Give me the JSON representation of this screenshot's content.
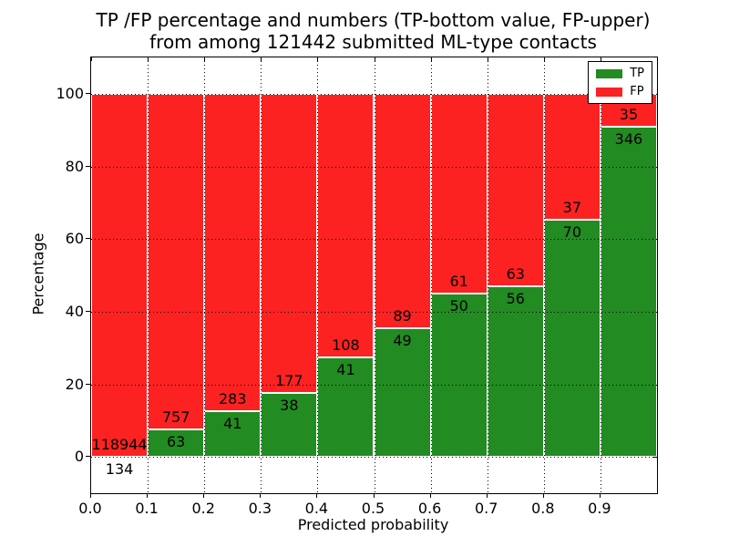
{
  "header": {
    "title_line1": "TP /FP percentage and numbers (TP-bottom value, FP-upper)",
    "title_line2": "from among 121442 submitted ML-type contacts"
  },
  "chart_data": {
    "type": "bar",
    "stacked": true,
    "title": "TP /FP percentage and numbers (TP-bottom value, FP-upper)\nfrom among 121442 submitted ML-type contacts",
    "xlabel": "Predicted probability",
    "ylabel": "Percentage",
    "total_submitted": 121442,
    "xlim": [
      0.0,
      1.0
    ],
    "ylim": [
      -10,
      110
    ],
    "xticks": [
      0.0,
      0.1,
      0.2,
      0.3,
      0.4,
      0.5,
      0.6,
      0.7,
      0.8,
      0.9
    ],
    "xtick_labels": [
      "0.0",
      "0.1",
      "0.2",
      "0.3",
      "0.4",
      "0.5",
      "0.6",
      "0.7",
      "0.8",
      "0.9"
    ],
    "yticks": [
      0,
      20,
      40,
      60,
      80,
      100
    ],
    "ytick_labels": [
      "0",
      "20",
      "40",
      "60",
      "80",
      "100"
    ],
    "bin_edges": [
      0.0,
      0.1,
      0.2,
      0.3,
      0.4,
      0.5,
      0.6,
      0.7,
      0.8,
      0.9,
      1.0
    ],
    "grid": true,
    "bar_edge_color": "#ffffff",
    "series": [
      {
        "name": "TP",
        "color": "#228b22",
        "counts": [
          134,
          63,
          41,
          38,
          41,
          49,
          50,
          56,
          70,
          346
        ],
        "percent": [
          0.11,
          7.68,
          12.65,
          17.67,
          27.52,
          35.51,
          45.05,
          47.06,
          65.42,
          90.81
        ]
      },
      {
        "name": "FP",
        "color": "#fc2222",
        "counts": [
          118944,
          757,
          283,
          177,
          108,
          89,
          61,
          63,
          37,
          35
        ],
        "percent": [
          99.89,
          92.32,
          87.35,
          82.33,
          72.48,
          64.49,
          54.95,
          52.94,
          34.58,
          9.19
        ]
      }
    ],
    "legend": {
      "position": "upper right",
      "entries": [
        "TP",
        "FP"
      ]
    }
  }
}
